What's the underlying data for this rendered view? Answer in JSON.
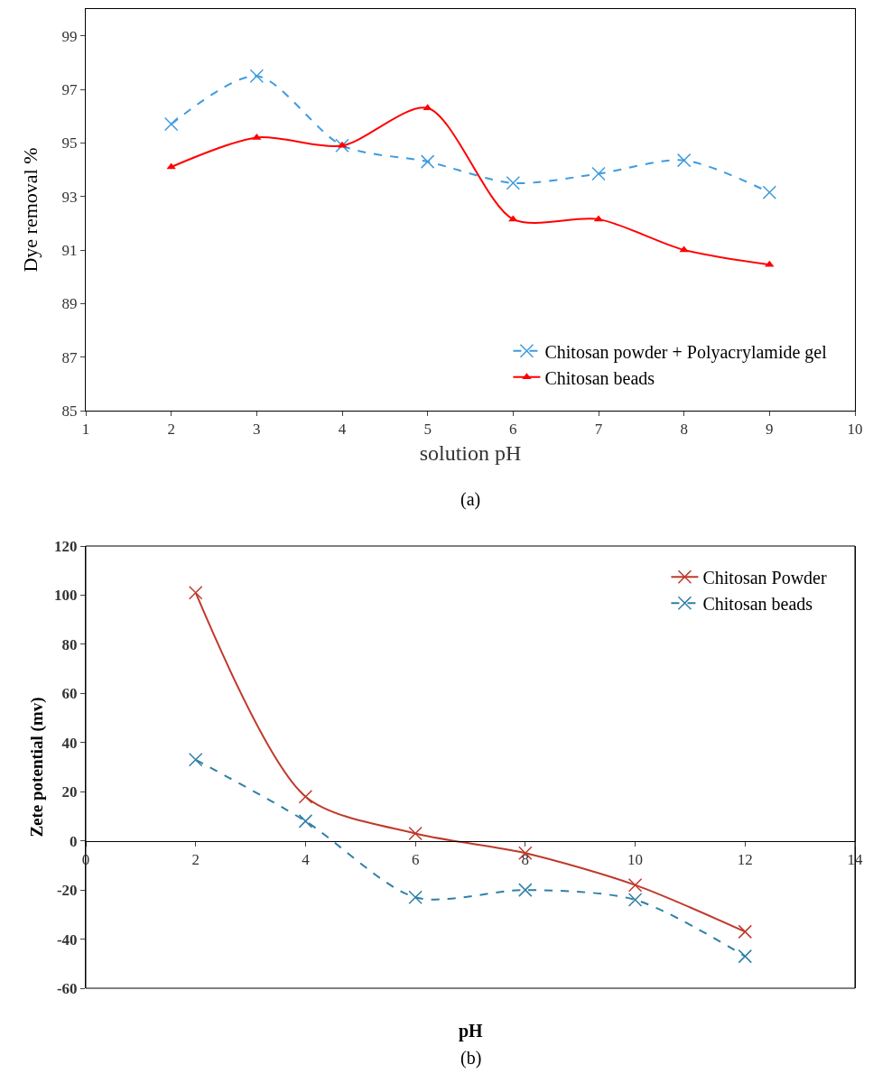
{
  "chart_data": [
    {
      "type": "line",
      "xlabel": "solution pH",
      "ylabel": "Dye removal %",
      "x": [
        2,
        3,
        4,
        5,
        6,
        7,
        8,
        9
      ],
      "xlim": [
        1,
        10
      ],
      "xticks": [
        1,
        2,
        3,
        4,
        5,
        6,
        7,
        8,
        9,
        10
      ],
      "ylim": [
        85,
        100
      ],
      "yticks": [
        85,
        87,
        89,
        91,
        93,
        95,
        97,
        99
      ],
      "grid": false,
      "legend": "bottom right",
      "annotations": [
        "(a)"
      ],
      "series": [
        {
          "name": "Chitosan powder + Polyacrylamide gel",
          "color": "#3d9be0",
          "line_style": "dashed",
          "marker": "cross",
          "values": [
            95.7,
            97.5,
            94.9,
            94.3,
            93.5,
            93.85,
            94.35,
            93.15
          ]
        },
        {
          "name": "Chitosan beads",
          "color": "#ff0000",
          "line_style": "solid",
          "marker": "triangle",
          "values": [
            94.1,
            95.2,
            94.9,
            96.3,
            92.15,
            92.15,
            91.0,
            90.45
          ]
        }
      ]
    },
    {
      "type": "line",
      "xlabel": "pH",
      "ylabel": "Zete potential (mv)",
      "x": [
        2,
        4,
        6,
        8,
        10,
        12
      ],
      "xlim": [
        0,
        14
      ],
      "xticks": [
        0,
        2,
        4,
        6,
        8,
        10,
        12,
        14
      ],
      "ylim": [
        -60,
        120
      ],
      "yticks": [
        -60,
        -40,
        -20,
        0,
        20,
        40,
        60,
        80,
        100,
        120
      ],
      "grid": false,
      "legend": "top right",
      "annotations": [
        "(b)"
      ],
      "series": [
        {
          "name": "Chitosan Powder",
          "color": "#c0392b",
          "line_style": "solid",
          "marker": "cross",
          "values": [
            101,
            18,
            3,
            -5,
            -18,
            -37
          ]
        },
        {
          "name": "Chitosan beads",
          "color": "#2e7fa8",
          "line_style": "dashed",
          "marker": "cross",
          "values": [
            33,
            8,
            -23,
            -20,
            -24,
            -47
          ]
        }
      ]
    }
  ]
}
